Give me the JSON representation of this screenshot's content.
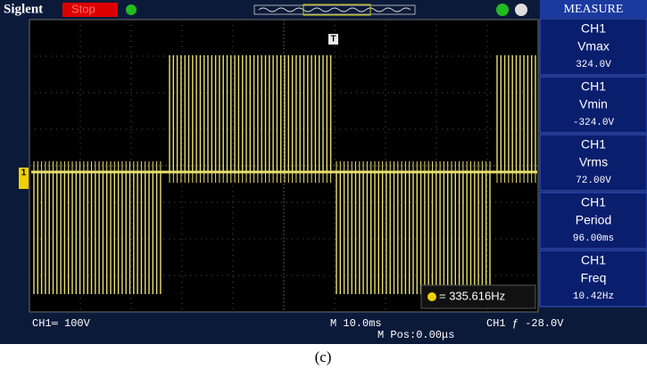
{
  "header": {
    "brand": "Siglent",
    "status": "Stop"
  },
  "measure": {
    "title": "MEASURE",
    "items": [
      {
        "channel": "CH1",
        "label": "Vmax",
        "value": "324.0V"
      },
      {
        "channel": "CH1",
        "label": "Vmin",
        "value": "-324.0V"
      },
      {
        "channel": "CH1",
        "label": "Vrms",
        "value": "72.00V"
      },
      {
        "channel": "CH1",
        "label": "Period",
        "value": "96.00ms"
      },
      {
        "channel": "CH1",
        "label": "Freq",
        "value": "10.42Hz"
      }
    ]
  },
  "trigger_marker": "T",
  "channel_marker": "1",
  "cursor_readout": "= 335.616Hz",
  "footer": {
    "channel_scale": "CH1═ 100V",
    "timebase": "M 10.0ms",
    "position": "M Pos:0.00μs",
    "trigger": "CH1 ƒ -28.0V"
  },
  "caption": "(c)"
}
